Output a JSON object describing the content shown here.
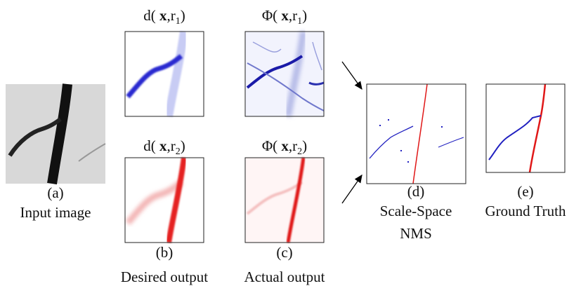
{
  "titles": [
    {
      "func": "d(",
      "var": "x",
      "r": ",r",
      "sub": "1",
      "end": ")"
    },
    {
      "func": "Φ(",
      "var": "x",
      "r": ",r",
      "sub": "1",
      "end": ")"
    },
    {
      "func": "d(",
      "var": "x",
      "r": ",r",
      "sub": "2",
      "end": ")"
    },
    {
      "func": "Φ(",
      "var": "x",
      "r": ",r",
      "sub": "2",
      "end": ")"
    }
  ],
  "panels": [
    {
      "label": "(a)",
      "caption": [
        "Input image"
      ]
    },
    {
      "label": "(b)",
      "caption": [
        "Desired output"
      ]
    },
    {
      "label": "(c)",
      "caption": [
        "Actual output"
      ]
    },
    {
      "label": "(d)",
      "caption": [
        "Scale-Space",
        "NMS"
      ]
    },
    {
      "label": "(e)",
      "caption": [
        "Ground Truth"
      ]
    }
  ]
}
